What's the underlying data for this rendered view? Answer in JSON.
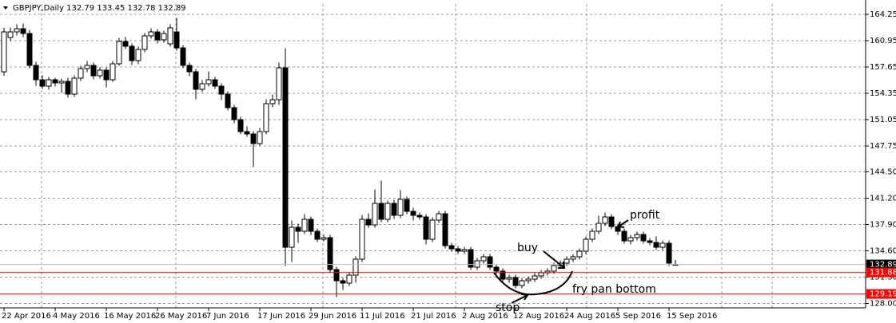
{
  "chart_data": {
    "type": "candlestick",
    "title": "GBPJPY,Daily 132.79 133.45 132.78 132.89",
    "categories": [
      "22 Apr 2016",
      null,
      null,
      null,
      null,
      null,
      null,
      null,
      "4 May 2016",
      null,
      null,
      null,
      null,
      null,
      null,
      null,
      "16 May 2016",
      null,
      null,
      null,
      null,
      null,
      null,
      null,
      "26 May 2016",
      null,
      null,
      null,
      null,
      null,
      null,
      null,
      "7 Jun 2016",
      null,
      null,
      null,
      null,
      null,
      null,
      null,
      "17 Jun 2016",
      null,
      null,
      null,
      null,
      null,
      null,
      null,
      "29 Jun 2016",
      null,
      null,
      null,
      null,
      null,
      null,
      null,
      "11 Jul 2016",
      null,
      null,
      null,
      null,
      null,
      null,
      null,
      "21 Jul 2016",
      null,
      null,
      null,
      null,
      null,
      null,
      null,
      "2 Aug 2016",
      null,
      null,
      null,
      null,
      null,
      null,
      null,
      "12 Aug 2016",
      null,
      null,
      null,
      null,
      null,
      null,
      null,
      "24 Aug 2016",
      null,
      null,
      null,
      null,
      null,
      null,
      null,
      "5 Sep 2016",
      null,
      null,
      null,
      null,
      null,
      null,
      null,
      "15 Sep 2016",
      null
    ],
    "open": [
      157.05,
      161.35,
      162.05,
      162.45,
      161.85,
      157.85,
      156.05,
      155.25,
      156.05,
      155.65,
      155.85,
      154.25,
      156.25,
      157.45,
      157.85,
      156.55,
      157.25,
      156.05,
      158.05,
      160.85,
      160.25,
      158.45,
      159.85,
      161.55,
      162.05,
      161.05,
      160.55,
      162.05,
      160.05,
      157.85,
      157.05,
      154.85,
      155.55,
      156.05,
      155.25,
      154.25,
      152.55,
      151.05,
      149.55,
      149.25,
      148.05,
      149.55,
      153.05,
      153.55,
      157.55,
      135.05,
      137.55,
      137.05,
      138.55,
      137.05,
      136.05,
      136.25,
      132.25,
      130.85,
      130.55,
      131.55,
      133.55,
      138.55,
      137.85,
      140.55,
      138.55,
      140.55,
      139.05,
      141.05,
      139.55,
      139.05,
      138.85,
      136.05,
      138.45,
      139.25,
      135.25,
      134.85,
      134.55,
      134.75,
      132.55,
      133.35,
      133.85,
      132.55,
      132.05,
      131.05,
      131.25,
      130.25,
      130.85,
      131.05,
      131.45,
      131.85,
      132.05,
      132.75,
      133.05,
      133.55,
      133.85,
      134.55,
      136.05,
      137.05,
      138.05,
      138.85,
      137.65,
      137.05,
      135.85,
      136.25,
      136.65,
      135.85,
      135.65,
      135.05,
      135.55,
      132.79
    ],
    "high": [
      162.55,
      162.6,
      163.0,
      163.1,
      162.3,
      158.3,
      156.6,
      156.4,
      156.3,
      156.2,
      156.3,
      156.6,
      157.8,
      158.4,
      158.2,
      157.6,
      157.6,
      158.4,
      161.3,
      161.4,
      160.6,
      160.2,
      161.9,
      162.5,
      162.4,
      162.2,
      163.0,
      163.8,
      160.4,
      158.2,
      157.4,
      156.0,
      157.1,
      156.4,
      155.6,
      154.6,
      152.9,
      151.4,
      150.2,
      149.6,
      150.0,
      153.6,
      154.2,
      158.2,
      160.0,
      138.4,
      138.0,
      139.2,
      138.9,
      137.4,
      136.6,
      136.6,
      132.6,
      131.2,
      131.9,
      133.9,
      139.1,
      139.3,
      142.3,
      143.4,
      140.9,
      141.0,
      142.2,
      141.4,
      140.0,
      139.4,
      139.2,
      138.8,
      139.6,
      139.6,
      135.6,
      135.2,
      135.1,
      135.1,
      133.7,
      134.2,
      134.2,
      132.9,
      132.4,
      131.6,
      131.6,
      131.2,
      131.4,
      131.8,
      132.2,
      132.4,
      133.1,
      133.4,
      133.9,
      134.2,
      134.9,
      136.4,
      137.4,
      139.0,
      139.4,
      139.2,
      138.0,
      137.4,
      136.6,
      137.0,
      137.0,
      136.2,
      136.4,
      135.9,
      135.9,
      133.45
    ],
    "low": [
      156.55,
      160.9,
      161.6,
      161.4,
      157.5,
      155.3,
      154.9,
      154.8,
      155.2,
      154.4,
      153.8,
      153.9,
      155.9,
      157.0,
      156.1,
      156.2,
      155.1,
      155.8,
      157.8,
      159.9,
      157.9,
      158.0,
      159.5,
      161.2,
      160.6,
      160.7,
      160.2,
      159.7,
      157.5,
      156.5,
      153.6,
      154.5,
      155.2,
      154.9,
      153.5,
      152.2,
      150.6,
      149.2,
      148.9,
      145.1,
      147.8,
      149.2,
      152.6,
      152.9,
      132.7,
      133.2,
      135.6,
      136.7,
      136.6,
      135.7,
      135.8,
      131.9,
      128.8,
      129.7,
      130.2,
      130.6,
      133.2,
      137.5,
      137.5,
      138.2,
      138.2,
      138.6,
      138.7,
      139.2,
      138.4,
      138.5,
      135.4,
      135.7,
      138.1,
      134.9,
      134.5,
      134.2,
      134.2,
      132.2,
      132.2,
      133.0,
      132.2,
      131.7,
      130.7,
      130.6,
      129.9,
      129.9,
      130.5,
      130.7,
      131.1,
      131.5,
      131.7,
      132.4,
      132.7,
      133.2,
      133.5,
      134.2,
      135.7,
      136.7,
      137.7,
      137.3,
      136.6,
      135.5,
      135.4,
      135.9,
      135.5,
      135.3,
      134.7,
      134.7,
      132.7,
      132.78
    ],
    "close": [
      162.05,
      162.05,
      162.45,
      161.85,
      157.85,
      156.05,
      155.25,
      156.05,
      155.65,
      155.85,
      154.25,
      156.25,
      157.45,
      157.85,
      156.55,
      157.25,
      156.05,
      158.05,
      160.85,
      160.25,
      158.45,
      159.85,
      161.55,
      162.05,
      161.05,
      161.85,
      162.55,
      160.05,
      157.85,
      157.05,
      154.85,
      155.55,
      156.05,
      155.25,
      154.25,
      152.55,
      151.05,
      149.55,
      149.25,
      148.05,
      149.55,
      153.05,
      153.55,
      157.55,
      135.05,
      137.55,
      137.05,
      138.55,
      137.05,
      136.05,
      136.25,
      132.25,
      130.85,
      130.55,
      131.55,
      133.55,
      138.55,
      137.85,
      140.55,
      138.55,
      140.55,
      139.05,
      141.05,
      139.55,
      139.05,
      138.85,
      136.05,
      138.45,
      139.25,
      135.25,
      134.85,
      134.55,
      134.75,
      132.55,
      133.35,
      133.85,
      132.55,
      132.05,
      131.05,
      131.25,
      130.25,
      130.85,
      131.05,
      131.45,
      131.85,
      132.05,
      132.75,
      133.05,
      133.55,
      133.85,
      134.55,
      136.05,
      137.05,
      138.05,
      138.85,
      137.65,
      137.05,
      135.85,
      136.25,
      136.65,
      135.85,
      135.65,
      135.05,
      135.55,
      133.05,
      132.89
    ],
    "ylim": [
      127.45,
      165.55
    ],
    "yticks": [
      164.25,
      160.95,
      157.65,
      154.35,
      151.05,
      147.75,
      {
        "value": 144.5,
        "label": "144.50"
      },
      {
        "value": 141.2,
        "label": "141.20"
      },
      {
        "value": 137.9,
        "label": "137.90"
      },
      {
        "value": 134.6,
        "label": "134.60"
      },
      {
        "value": 131.3,
        "label": "131.30"
      },
      {
        "value": 128,
        "label": "128.00"
      }
    ],
    "grid": true,
    "levels": [
      {
        "value": 132.89,
        "color": "#c0c0c0",
        "box": "#000000"
      },
      {
        "value": 131.88,
        "color": "#ff0000",
        "box": "#ff0000"
      },
      {
        "value": 129.19,
        "color": "#ff0000",
        "box": "#ff0000"
      }
    ],
    "annotations": [
      "buy",
      "profit",
      "stop",
      "fry pan bottom"
    ]
  }
}
